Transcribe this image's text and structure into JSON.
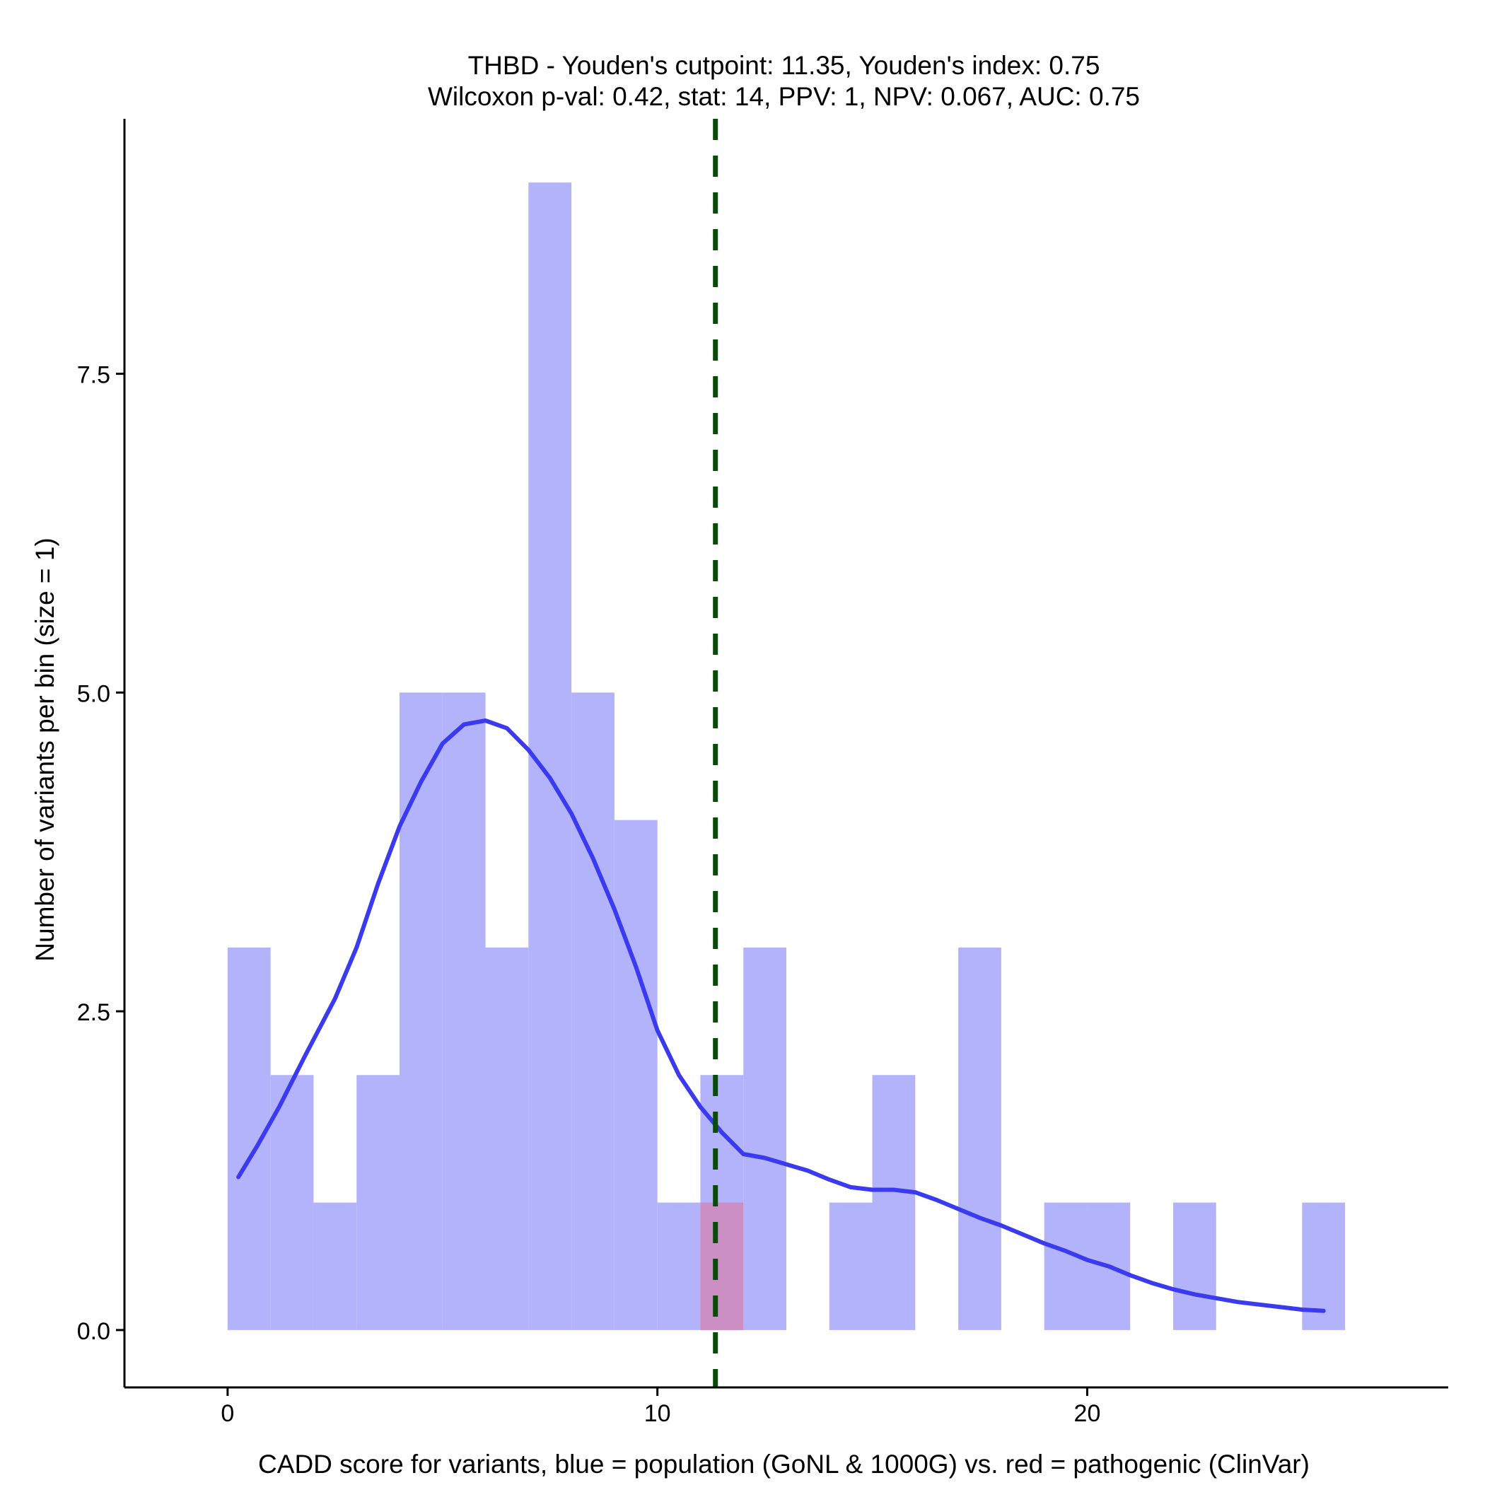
{
  "chart_data": {
    "type": "histogram",
    "title_line1": "THBD - Youden's cutpoint: 11.35, Youden's index: 0.75",
    "title_line2": "Wilcoxon p-val: 0.42, stat: 14, PPV: 1, NPV: 0.067, AUC: 0.75",
    "xlabel": "CADD score for variants, blue = population (GoNL & 1000G) vs. red = pathogenic (ClinVar)",
    "ylabel": "Number of variants per bin (size = 1)",
    "xlim": [
      -2.4,
      28.4
    ],
    "ylim": [
      -0.45,
      9.5
    ],
    "x_ticks": [
      0,
      10,
      20
    ],
    "x_tick_labels": [
      "0",
      "10",
      "20"
    ],
    "y_ticks": [
      0,
      2.5,
      5,
      7.5
    ],
    "y_tick_labels": [
      "0.0",
      "2.5",
      "5.0",
      "7.5"
    ],
    "bin_width": 1,
    "series": [
      {
        "name": "population (GoNL & 1000G)",
        "color": "#b3b3fb",
        "bins": [
          {
            "x0": 0,
            "count": 3
          },
          {
            "x0": 1,
            "count": 2
          },
          {
            "x0": 2,
            "count": 1
          },
          {
            "x0": 3,
            "count": 2
          },
          {
            "x0": 4,
            "count": 5
          },
          {
            "x0": 5,
            "count": 5
          },
          {
            "x0": 6,
            "count": 3
          },
          {
            "x0": 7,
            "count": 9
          },
          {
            "x0": 8,
            "count": 5
          },
          {
            "x0": 9,
            "count": 4
          },
          {
            "x0": 10,
            "count": 1
          },
          {
            "x0": 11,
            "count": 2
          },
          {
            "x0": 12,
            "count": 3
          },
          {
            "x0": 14,
            "count": 1
          },
          {
            "x0": 15,
            "count": 2
          },
          {
            "x0": 17,
            "count": 3
          },
          {
            "x0": 19,
            "count": 1
          },
          {
            "x0": 20,
            "count": 1
          },
          {
            "x0": 22,
            "count": 1
          },
          {
            "x0": 25,
            "count": 1
          }
        ]
      },
      {
        "name": "pathogenic (ClinVar)",
        "color": "#cc8fc4",
        "bins": [
          {
            "x0": 11,
            "count": 1
          }
        ]
      }
    ],
    "density_curve": {
      "color": "#3a3af0",
      "x": [
        0.25,
        0.7,
        1.2,
        1.8,
        2.5,
        3.0,
        3.5,
        4.0,
        4.5,
        5.0,
        5.5,
        6.0,
        6.5,
        7.0,
        7.5,
        8.0,
        8.5,
        9.0,
        9.5,
        10.0,
        10.5,
        11.0,
        11.5,
        12.0,
        12.5,
        13.0,
        13.5,
        14.0,
        14.5,
        15.0,
        15.5,
        16.0,
        16.5,
        17.0,
        17.5,
        18.0,
        18.5,
        19.0,
        19.5,
        20.0,
        20.5,
        21.0,
        21.5,
        22.0,
        22.5,
        23.0,
        23.5,
        24.0,
        24.5,
        25.0,
        25.5
      ],
      "y": [
        1.2,
        1.45,
        1.75,
        2.15,
        2.6,
        3.0,
        3.5,
        3.95,
        4.3,
        4.6,
        4.75,
        4.78,
        4.72,
        4.55,
        4.33,
        4.05,
        3.7,
        3.3,
        2.85,
        2.35,
        2.0,
        1.75,
        1.55,
        1.38,
        1.35,
        1.3,
        1.25,
        1.18,
        1.12,
        1.1,
        1.1,
        1.08,
        1.02,
        0.95,
        0.88,
        0.82,
        0.75,
        0.68,
        0.62,
        0.55,
        0.5,
        0.43,
        0.37,
        0.32,
        0.28,
        0.25,
        0.22,
        0.2,
        0.18,
        0.16,
        0.15
      ]
    },
    "cutpoint": {
      "x": 11.35,
      "color": "#0a4a0a",
      "style": "dashed"
    }
  }
}
